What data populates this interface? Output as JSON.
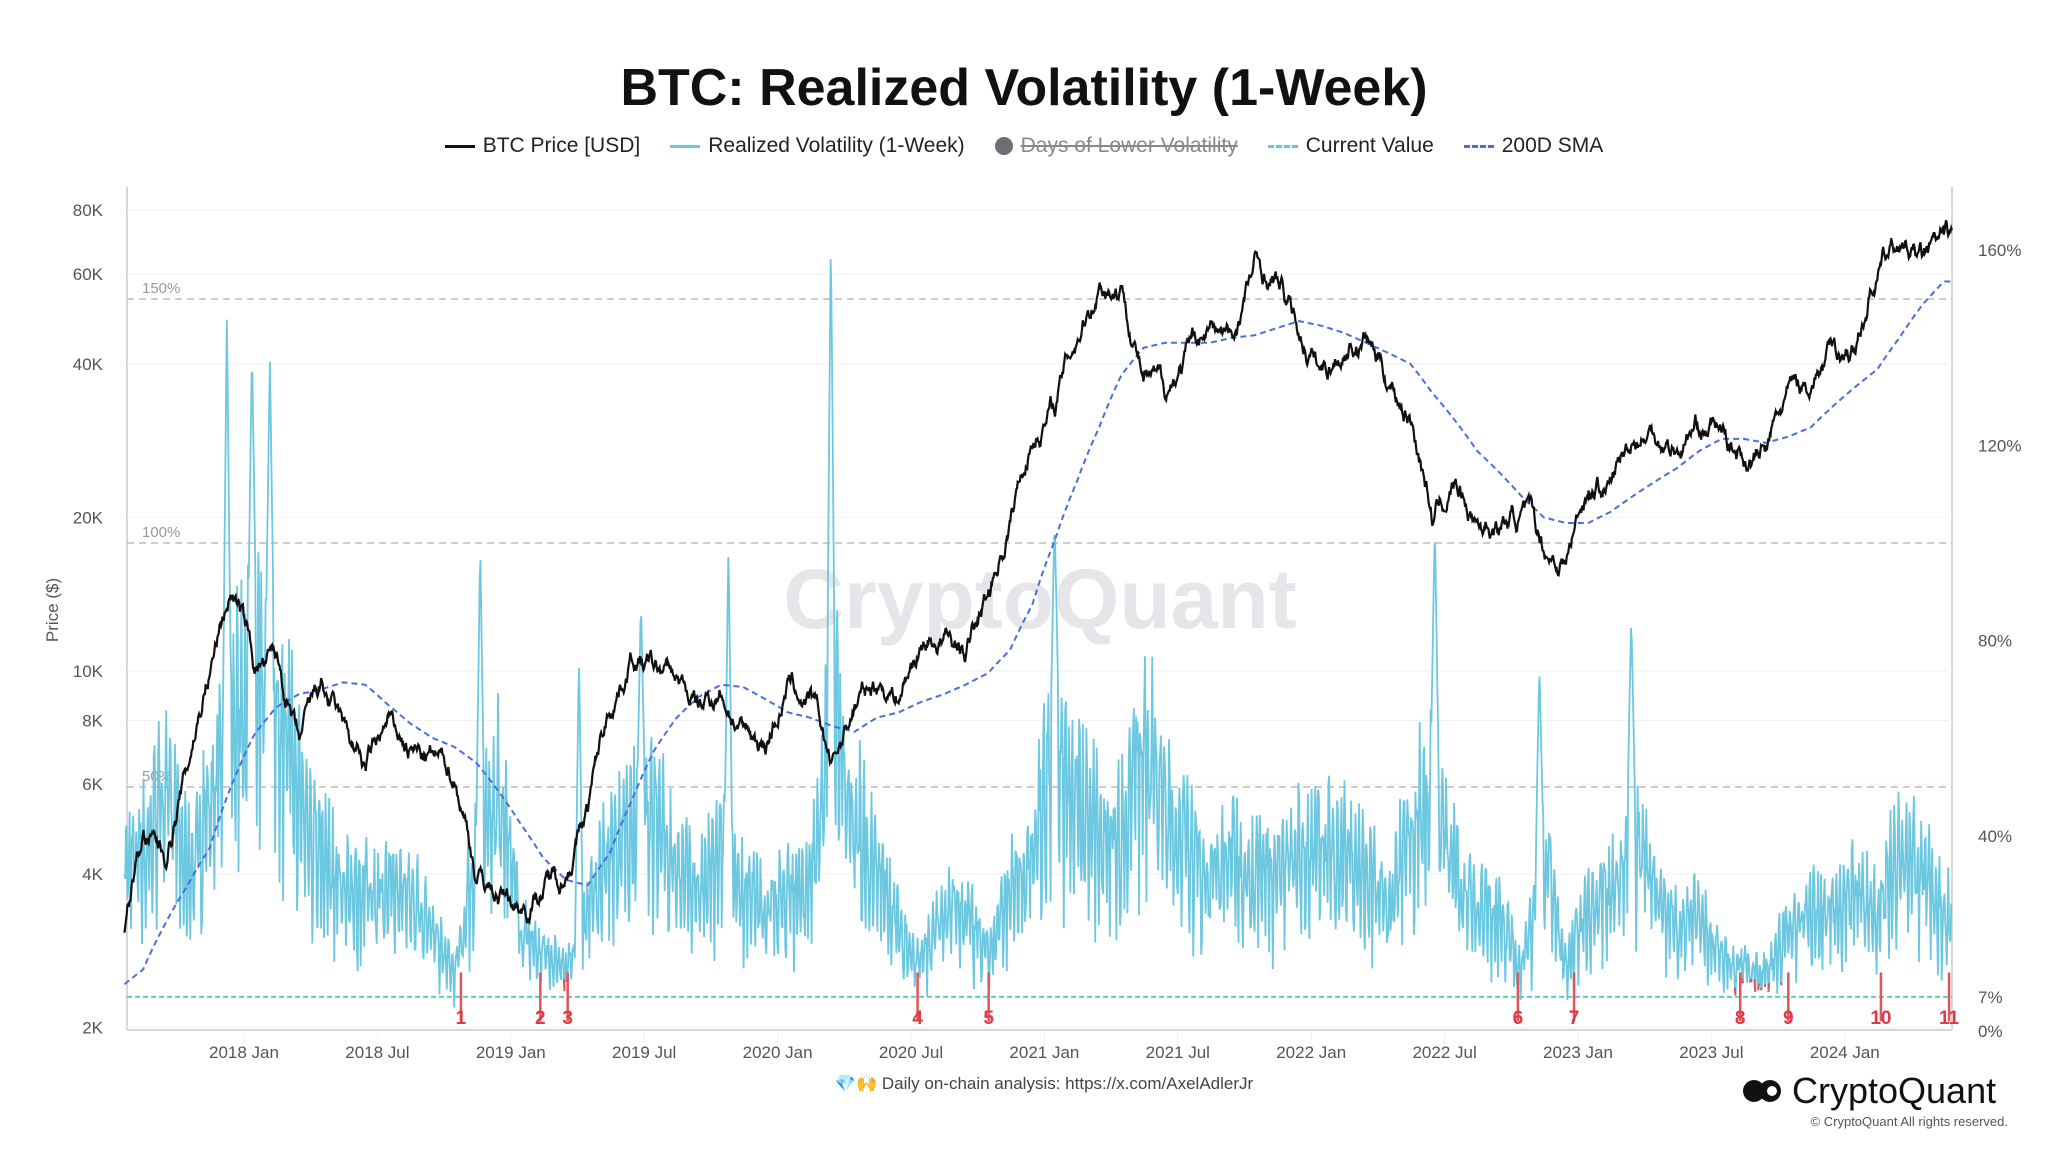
{
  "header": {
    "title": "BTC: Realized Volatility (1-Week)"
  },
  "legend": [
    {
      "label": "BTC Price [USD]",
      "color": "#111111",
      "style": "solid"
    },
    {
      "label": "Realized Volatility (1-Week)",
      "color": "#6cc7e0",
      "style": "solid"
    },
    {
      "label": "Days of Lower Volatility",
      "color": "#6f6e78",
      "style": "dot-hidden"
    },
    {
      "label": "Current Value",
      "color": "#5bc8d6",
      "style": "dashed"
    },
    {
      "label": "200D SMA",
      "color": "#4a6fdc",
      "style": "dashed"
    }
  ],
  "chart_data": {
    "type": "line",
    "title": "BTC: Realized Volatility (1-Week)",
    "ylabel": "Price ($)",
    "y_left_scale": "log",
    "y_left_range": [
      2000,
      80000
    ],
    "y_right_range": [
      0,
      160
    ],
    "x_range": [
      "2017-07-20",
      "2024-05-26"
    ],
    "x_ticks": [
      "2018 Jan",
      "2018 Jul",
      "2019 Jan",
      "2019 Jul",
      "2020 Jan",
      "2020 Jul",
      "2021 Jan",
      "2021 Jul",
      "2022 Jan",
      "2022 Jul",
      "2023 Jan",
      "2023 Jul",
      "2024 Jan"
    ],
    "y_left_ticks": [
      {
        "v": 2000,
        "label": "2K"
      },
      {
        "v": 4000,
        "label": "4K"
      },
      {
        "v": 6000,
        "label": "6K"
      },
      {
        "v": 8000,
        "label": "8K"
      },
      {
        "v": 10000,
        "label": "10K"
      },
      {
        "v": 20000,
        "label": "20K"
      },
      {
        "v": 40000,
        "label": "40K"
      },
      {
        "v": 60000,
        "label": "60K"
      },
      {
        "v": 80000,
        "label": "80K"
      }
    ],
    "y_right_ticks": [
      {
        "v": 0,
        "label": "0%"
      },
      {
        "v": 7,
        "label": "7%"
      },
      {
        "v": 40,
        "label": "40%"
      },
      {
        "v": 80,
        "label": "80%"
      },
      {
        "v": 120,
        "label": "120%"
      },
      {
        "v": 160,
        "label": "160%"
      }
    ],
    "reference_lines": [
      {
        "v": 50,
        "label": "50%"
      },
      {
        "v": 100,
        "label": "100%"
      },
      {
        "v": 150,
        "label": "150%"
      }
    ],
    "current_value": 7,
    "series_start_month": "2017-07",
    "series": [
      {
        "name": "BTC Price [USD]",
        "axis": "left",
        "monthly": [
          2700,
          4700,
          4300,
          6400,
          10000,
          14500,
          10200,
          10300,
          6900,
          9200,
          7500,
          6400,
          7700,
          7000,
          6600,
          6300,
          4000,
          3700,
          3450,
          3800,
          4100,
          5300,
          8500,
          10800,
          10000,
          9600,
          8300,
          9200,
          7500,
          7200,
          9350,
          8600,
          6400,
          8600,
          9450,
          9150,
          11300,
          11650,
          10800,
          13800,
          19700,
          29000,
          33100,
          45200,
          58800,
          57700,
          37300,
          35000,
          41500,
          47100,
          43800,
          61300,
          57000,
          46300,
          38500,
          43200,
          45500,
          37700,
          31800,
          19900,
          23300,
          20000,
          19400,
          20500,
          17200,
          16500,
          23100,
          23100,
          28500,
          29300,
          27200,
          30500,
          29200,
          26000,
          27000,
          34500,
          37700,
          42300,
          42600,
          61200,
          69000,
          63000,
          67500
        ]
      },
      {
        "name": "200D SMA",
        "axis": "left",
        "monthly": [
          2400,
          2600,
          3200,
          3800,
          4500,
          6000,
          7500,
          8500,
          9000,
          9200,
          9500,
          9400,
          8600,
          7900,
          7400,
          7100,
          6600,
          5800,
          5000,
          4300,
          3900,
          3800,
          4400,
          5600,
          7000,
          8100,
          8900,
          9400,
          9300,
          8800,
          8300,
          8100,
          7800,
          7600,
          8100,
          8300,
          8700,
          9000,
          9400,
          9900,
          11000,
          13500,
          18000,
          23500,
          30000,
          38000,
          43000,
          44000,
          44000,
          44000,
          45000,
          45500,
          47000,
          48500,
          47500,
          46000,
          44000,
          42000,
          40000,
          35000,
          31000,
          27000,
          24500,
          22000,
          20000,
          19500,
          19500,
          20500,
          22000,
          23500,
          25000,
          27000,
          28500,
          28500,
          28000,
          28800,
          30000,
          33000,
          36000,
          39000,
          45000,
          52000,
          58000
        ]
      },
      {
        "name": "Realized Volatility (1-Week)",
        "axis": "right",
        "monthly": [
          40,
          45,
          60,
          40,
          55,
          80,
          90,
          85,
          60,
          45,
          35,
          35,
          35,
          35,
          25,
          15,
          45,
          60,
          25,
          20,
          15,
          30,
          45,
          50,
          55,
          40,
          35,
          45,
          35,
          30,
          35,
          35,
          80,
          55,
          40,
          25,
          18,
          30,
          30,
          18,
          35,
          45,
          70,
          60,
          50,
          50,
          75,
          55,
          45,
          40,
          45,
          40,
          40,
          45,
          45,
          45,
          40,
          30,
          50,
          60,
          40,
          30,
          30,
          15,
          45,
          15,
          30,
          35,
          50,
          35,
          25,
          30,
          18,
          15,
          15,
          25,
          30,
          30,
          35,
          30,
          45,
          40,
          30
        ],
        "spikes": [
          [
            "2017-12-08",
            147
          ],
          [
            "2018-01-12",
            140
          ],
          [
            "2018-02-06",
            138
          ],
          [
            "2018-11-20",
            100
          ],
          [
            "2019-04-03",
            77
          ],
          [
            "2019-06-27",
            88
          ],
          [
            "2019-10-25",
            100
          ],
          [
            "2020-03-13",
            164
          ],
          [
            "2021-01-15",
            105
          ],
          [
            "2022-06-18",
            104
          ],
          [
            "2022-11-09",
            75
          ],
          [
            "2023-03-13",
            85
          ]
        ]
      }
    ],
    "low_volatility_markers": [
      {
        "label": "1",
        "date": "2018-10-24"
      },
      {
        "label": "2",
        "date": "2019-02-11"
      },
      {
        "label": "3",
        "date": "2019-03-18"
      },
      {
        "label": "4",
        "date": "2020-07-10"
      },
      {
        "label": "5",
        "date": "2020-10-16"
      },
      {
        "label": "6",
        "date": "2022-10-10"
      },
      {
        "label": "7",
        "date": "2022-12-26"
      },
      {
        "label": "8",
        "date": "2023-08-10"
      },
      {
        "label": "9",
        "date": "2023-10-15"
      },
      {
        "label": "10",
        "date": "2024-02-20"
      },
      {
        "label": "11",
        "date": "2024-05-22"
      }
    ]
  },
  "footer": {
    "analysis": "💎🙌 Daily on-chain analysis: https://x.com/AxelAdlerJr",
    "brand": "CryptoQuant",
    "copyright": "© CryptoQuant All rights reserved."
  }
}
